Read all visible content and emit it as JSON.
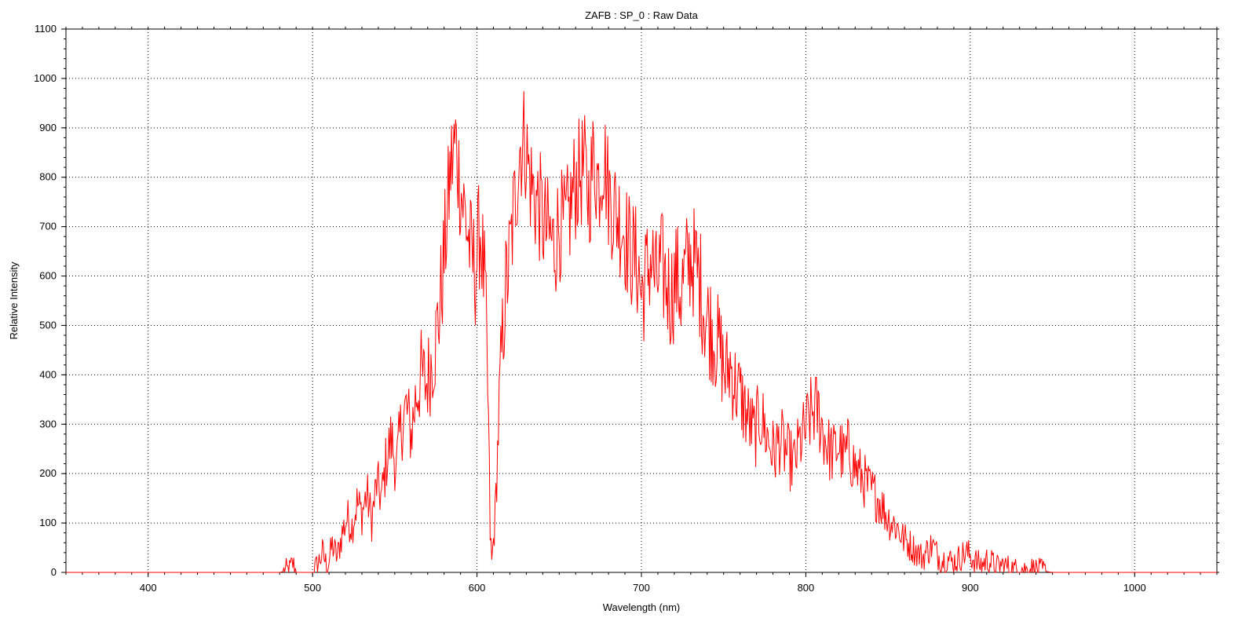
{
  "chart_data": {
    "type": "line",
    "title": "ZAFB : SP_0 : Raw Data",
    "xlabel": "Wavelength (nm)",
    "ylabel": "Relative Intensity",
    "xlim": [
      350,
      1050
    ],
    "ylim": [
      0,
      1100
    ],
    "xticks": [
      400,
      500,
      600,
      700,
      800,
      900,
      1000
    ],
    "yticks": [
      0,
      100,
      200,
      300,
      400,
      500,
      600,
      700,
      800,
      900,
      1000,
      1100
    ],
    "grid": true,
    "line_color": "#ff0000",
    "series": [
      {
        "name": "",
        "x": [
          350,
          480,
          486,
          488,
          490,
          500,
          503,
          506,
          509,
          512,
          515,
          518,
          521,
          524,
          527,
          530,
          533,
          536,
          539,
          542,
          545,
          548,
          551,
          554,
          557,
          560,
          563,
          566,
          569,
          572,
          575,
          578,
          581,
          584,
          587,
          590,
          593,
          596,
          599,
          602,
          605,
          607,
          608,
          609,
          611,
          614,
          617,
          620,
          623,
          626,
          629,
          632,
          635,
          638,
          641,
          644,
          647,
          650,
          653,
          656,
          659,
          662,
          665,
          668,
          671,
          674,
          677,
          680,
          683,
          686,
          689,
          692,
          695,
          698,
          700,
          703,
          706,
          709,
          712,
          715,
          718,
          721,
          724,
          727,
          730,
          733,
          736,
          739,
          742,
          745,
          748,
          751,
          754,
          757,
          760,
          763,
          766,
          769,
          772,
          775,
          778,
          781,
          784,
          787,
          790,
          793,
          796,
          799,
          802,
          805,
          808,
          811,
          814,
          817,
          820,
          823,
          826,
          829,
          832,
          835,
          838,
          841,
          844,
          847,
          850,
          853,
          856,
          859,
          862,
          865,
          868,
          871,
          874,
          877,
          880,
          883,
          886,
          889,
          892,
          895,
          898,
          901,
          904,
          907,
          910,
          913,
          916,
          919,
          922,
          925,
          928,
          931,
          934,
          937,
          940,
          943,
          946,
          950,
          1050
        ],
        "values": [
          0,
          0,
          5,
          18,
          0,
          0,
          15,
          40,
          10,
          55,
          30,
          80,
          110,
          95,
          140,
          120,
          160,
          105,
          180,
          150,
          230,
          270,
          210,
          300,
          330,
          280,
          360,
          400,
          380,
          420,
          470,
          560,
          680,
          820,
          870,
          780,
          720,
          650,
          610,
          700,
          560,
          300,
          80,
          20,
          110,
          380,
          560,
          640,
          750,
          860,
          880,
          800,
          760,
          740,
          700,
          680,
          660,
          710,
          690,
          720,
          780,
          800,
          820,
          760,
          840,
          790,
          850,
          770,
          740,
          720,
          700,
          660,
          640,
          620,
          560,
          600,
          640,
          580,
          620,
          590,
          560,
          600,
          570,
          610,
          640,
          620,
          580,
          520,
          500,
          470,
          450,
          400,
          420,
          380,
          360,
          330,
          300,
          280,
          320,
          290,
          260,
          240,
          270,
          250,
          230,
          220,
          260,
          280,
          310,
          330,
          320,
          280,
          250,
          240,
          260,
          230,
          250,
          220,
          200,
          190,
          170,
          160,
          150,
          130,
          110,
          100,
          90,
          70,
          60,
          50,
          40,
          30,
          45,
          55,
          35,
          25,
          30,
          20,
          25,
          35,
          40,
          30,
          20,
          15,
          25,
          20,
          10,
          15,
          12,
          8,
          5,
          10,
          4,
          8,
          5,
          3,
          2,
          0,
          0
        ]
      }
    ]
  }
}
